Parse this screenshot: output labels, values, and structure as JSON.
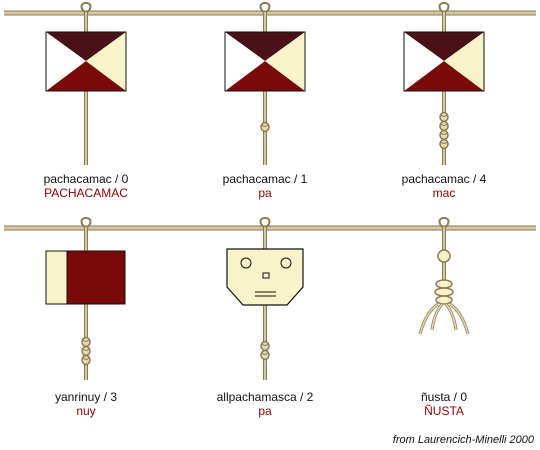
{
  "colors": {
    "cord": "#d8c8a0",
    "cord_dark": "#8a7a55",
    "maroon": "#7a0a0a",
    "dark_brown": "#4a1218",
    "cream": "#f8f3c8",
    "reading_red": "#8b0000"
  },
  "cords": [
    {
      "symbol": "triangles-emblem",
      "name": "pachacamac / 0",
      "reading": "PACHACAMAC",
      "knots": 0
    },
    {
      "symbol": "triangles-emblem",
      "name": "pachacamac / 1",
      "reading": "pa",
      "knots": 1
    },
    {
      "symbol": "triangles-emblem",
      "name": "pachacamac / 4",
      "reading": "mac",
      "knots": 4
    },
    {
      "symbol": "split-square-emblem",
      "name": "yanrinuy / 3",
      "reading": "nuy",
      "knots": 3
    },
    {
      "symbol": "face-emblem",
      "name": "allpachamasca / 2",
      "reading": "pa",
      "knots": 2
    },
    {
      "symbol": "figure-emblem",
      "name": "ñusta / 0",
      "reading": "ÑUSTA",
      "knots": 0
    }
  ],
  "credit": "from Laurencich-Minelli 2000"
}
